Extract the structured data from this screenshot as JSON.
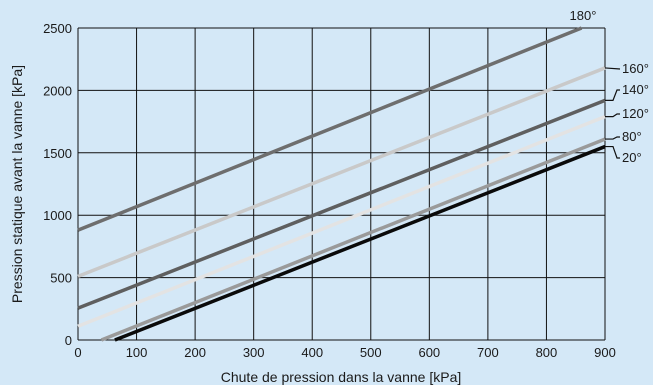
{
  "chart_data": {
    "type": "line",
    "title": "",
    "xlabel": "Chute de pression dans la vanne [kPa]",
    "ylabel": "Pression statique avant la vanne  [kPa]",
    "xlim": [
      0,
      900
    ],
    "ylim": [
      0,
      2500
    ],
    "xticks": [
      "0",
      "100",
      "200",
      "300",
      "400",
      "500",
      "600",
      "700",
      "800",
      "900"
    ],
    "yticks": [
      "0",
      "500",
      "1000",
      "1500",
      "2000",
      "2500"
    ],
    "grid": true,
    "series": [
      {
        "name": "180°",
        "color": "#6e6e6e",
        "points": [
          [
            0,
            880
          ],
          [
            860,
            2500
          ]
        ]
      },
      {
        "name": "160°",
        "color": "#c9c9c9",
        "points": [
          [
            0,
            510
          ],
          [
            900,
            2180
          ]
        ]
      },
      {
        "name": "140°",
        "color": "#5f5f5f",
        "points": [
          [
            0,
            255
          ],
          [
            900,
            1920
          ]
        ]
      },
      {
        "name": "120°",
        "color": "#e3e3e3",
        "points": [
          [
            0,
            110
          ],
          [
            900,
            1790
          ]
        ]
      },
      {
        "name": "80°",
        "color": "#9a9a9a",
        "points": [
          [
            40,
            0
          ],
          [
            900,
            1610
          ]
        ]
      },
      {
        "name": "20°",
        "color": "#0a0a0a",
        "points": [
          [
            63,
            0
          ],
          [
            900,
            1550
          ]
        ]
      }
    ]
  }
}
